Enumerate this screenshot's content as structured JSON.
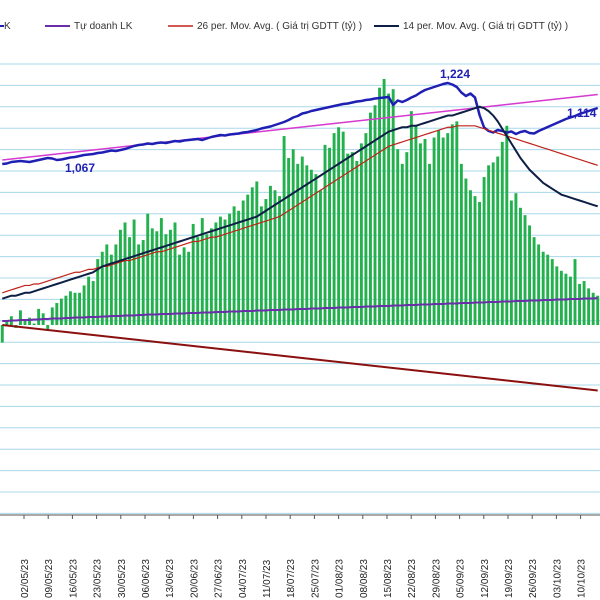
{
  "chart_data": {
    "type": "bar",
    "title": "",
    "xlabel": "",
    "ylabel": "",
    "legend": {
      "placement": "top",
      "entries": [
        {
          "key": "cut",
          "label": "K",
          "color": "#1f1fb4"
        },
        {
          "key": "prop",
          "label": "Tự doanh LK",
          "color": "#6a2ea8"
        },
        {
          "key": "ma26",
          "label": "26 per. Mov. Avg. ( Giá trị GDTT (tỷ) )",
          "color": "#c0221a"
        },
        {
          "key": "ma14",
          "label": "14 per. Mov. Avg. ( Giá trị GDTT (tỷ) )",
          "color": "#0d1f44"
        }
      ]
    },
    "x_ticks": [
      "02/05/23",
      "09/05/23",
      "16/05/23",
      "23/05/23",
      "30/05/23",
      "06/06/23",
      "13/06/23",
      "20/06/23",
      "27/06/23",
      "04/07/23",
      "11/07/23",
      "18/07/23",
      "25/07/23",
      "01/08/23",
      "08/08/23",
      "15/08/23",
      "22/08/23",
      "29/08/23",
      "05/09/23",
      "12/09/23",
      "19/09/23",
      "26/09/23",
      "03/10/23",
      "10/10/23"
    ],
    "annotations": [
      "1,224",
      "1,114",
      "1,067"
    ],
    "grid": true,
    "colors": {
      "bars": "#22b14c",
      "vnindex": "#1f1fb4",
      "trend": "#d63ad0",
      "proprietary": "#6a2ea8",
      "foreign": "#8b1010",
      "ma26": "#c0221a",
      "ma14": "#0d1f44",
      "grid": "#a8d8ea"
    },
    "series": [
      {
        "key": "bars",
        "values": [
          -12,
          3,
          6,
          -2,
          10,
          3,
          5,
          1,
          11,
          8,
          -4,
          12,
          15,
          18,
          20,
          23,
          22,
          22,
          27,
          33,
          30,
          45,
          50,
          55,
          48,
          55,
          65,
          70,
          60,
          72,
          55,
          58,
          76,
          66,
          64,
          73,
          62,
          65,
          70,
          48,
          53,
          50,
          69,
          60,
          73,
          62,
          66,
          70,
          74,
          72,
          76,
          81,
          78,
          85,
          89,
          94,
          98,
          81,
          86,
          95,
          92,
          88,
          129,
          114,
          120,
          110,
          115,
          109,
          106,
          103,
          92,
          123,
          121,
          131,
          135,
          132,
          117,
          118,
          112,
          124,
          131,
          145,
          150,
          162,
          168,
          158,
          161,
          120,
          110,
          118,
          146,
          136,
          124,
          127,
          110,
          128,
          133,
          128,
          131,
          137,
          139,
          110,
          100,
          92,
          88,
          84,
          101,
          109,
          111,
          115,
          125,
          136,
          85,
          90,
          80,
          75,
          68,
          60,
          55,
          50,
          48,
          45,
          40,
          37,
          35,
          33,
          45,
          28,
          30,
          25,
          22,
          20
        ]
      },
      {
        "key": "vnindex",
        "values": [
          1062,
          1063,
          1066,
          1067,
          1068,
          1067,
          1066,
          1068,
          1070,
          1072,
          1074,
          1073,
          1070,
          1071,
          1073,
          1075,
          1076,
          1078,
          1080,
          1081,
          1082,
          1084,
          1085,
          1087,
          1089,
          1088,
          1090,
          1092,
          1095,
          1098,
          1100,
          1101,
          1103,
          1102,
          1104,
          1105,
          1104,
          1106,
          1108,
          1107,
          1109,
          1110,
          1111,
          1112,
          1110,
          1113,
          1116,
          1118,
          1120,
          1119,
          1121,
          1122,
          1123,
          1125,
          1126,
          1128,
          1130,
          1133,
          1135,
          1137,
          1140,
          1143,
          1146,
          1150,
          1155,
          1158,
          1163,
          1165,
          1168,
          1170,
          1172,
          1174,
          1176,
          1178,
          1180,
          1182,
          1183,
          1185,
          1187,
          1188,
          1190,
          1191,
          1193,
          1194,
          1195,
          1196,
          1180,
          1189,
          1186,
          1190,
          1195,
          1199,
          1205,
          1210,
          1213,
          1216,
          1219,
          1222,
          1224,
          1221,
          1216,
          1205,
          1198,
          1203,
          1195,
          1160,
          1135,
          1128,
          1125,
          1130,
          1128,
          1125,
          1127,
          1122,
          1126,
          1128,
          1124,
          1123,
          1128,
          1132,
          1136,
          1140,
          1144,
          1148,
          1152,
          1155,
          1158,
          1162,
          1165,
          1168,
          1171,
          1174
        ]
      },
      {
        "key": "trend",
        "values": [
          1070,
          1071,
          1072,
          1073,
          1074,
          1075,
          1076,
          1077,
          1078,
          1079,
          1080,
          1081,
          1082,
          1083,
          1084,
          1085,
          1086,
          1087,
          1088,
          1089,
          1090,
          1091,
          1092,
          1093,
          1094,
          1095,
          1096,
          1097,
          1098,
          1099,
          1100,
          1101,
          1102,
          1103,
          1104,
          1105,
          1106,
          1107,
          1108,
          1109,
          1110,
          1111,
          1112,
          1113,
          1114,
          1115,
          1116,
          1117,
          1118,
          1119,
          1120,
          1121,
          1122,
          1123,
          1124,
          1125,
          1126,
          1127,
          1128,
          1129,
          1130,
          1131,
          1132,
          1133,
          1134,
          1135,
          1136,
          1137,
          1138,
          1139,
          1140,
          1141,
          1142,
          1143,
          1144,
          1145,
          1146,
          1147,
          1148,
          1149,
          1150,
          1151,
          1152,
          1153,
          1154,
          1155,
          1156,
          1157,
          1158,
          1159,
          1160,
          1161,
          1162,
          1163,
          1164,
          1165,
          1166,
          1167,
          1168,
          1169,
          1170,
          1171,
          1172,
          1173,
          1174,
          1175,
          1176,
          1177,
          1178,
          1179,
          1180,
          1181,
          1182,
          1183,
          1184,
          1185,
          1186,
          1187,
          1188,
          1189,
          1190,
          1191,
          1192,
          1193,
          1194,
          1195,
          1196,
          1197,
          1198,
          1199,
          1200,
          1201
        ]
      },
      {
        "key": "ma26",
        "values": [
          22,
          23,
          24,
          25,
          26,
          27,
          27,
          28,
          28,
          29,
          30,
          31,
          32,
          33,
          34,
          35,
          36,
          36,
          37,
          38,
          38,
          39,
          40,
          40,
          41,
          42,
          43,
          44,
          44,
          45,
          46,
          47,
          48,
          49,
          50,
          50,
          51,
          52,
          53,
          54,
          55,
          56,
          57,
          57,
          58,
          59,
          60,
          60,
          61,
          62,
          63,
          64,
          65,
          66,
          67,
          68,
          69,
          70,
          71,
          72,
          73,
          74,
          76,
          78,
          80,
          82,
          84,
          86,
          88,
          90,
          92,
          94,
          96,
          98,
          100,
          102,
          104,
          106,
          108,
          110,
          112,
          114,
          116,
          118,
          120,
          122,
          123,
          124,
          125,
          126,
          127,
          128,
          129,
          130,
          131,
          132,
          133,
          134,
          135,
          135,
          136,
          136,
          136,
          136,
          136,
          135,
          134,
          133,
          132,
          131,
          130,
          129,
          128,
          127,
          126,
          125,
          124,
          123,
          122,
          121,
          120,
          119,
          118,
          117,
          116,
          115,
          114,
          113,
          112,
          111,
          110,
          109
        ]
      },
      {
        "key": "ma14",
        "values": [
          18,
          19,
          20,
          20,
          21,
          22,
          22,
          23,
          24,
          25,
          26,
          27,
          28,
          29,
          30,
          31,
          32,
          33,
          34,
          35,
          36,
          38,
          40,
          41,
          42,
          43,
          44,
          45,
          46,
          47,
          48,
          49,
          50,
          51,
          52,
          53,
          54,
          55,
          56,
          57,
          58,
          59,
          60,
          61,
          62,
          63,
          64,
          65,
          66,
          67,
          68,
          69,
          70,
          71,
          72,
          73,
          74,
          76,
          78,
          80,
          82,
          84,
          86,
          88,
          90,
          92,
          94,
          96,
          98,
          100,
          102,
          104,
          106,
          108,
          110,
          112,
          114,
          116,
          118,
          120,
          122,
          124,
          126,
          128,
          130,
          132,
          133,
          134,
          135,
          135,
          136,
          136,
          137,
          138,
          139,
          140,
          141,
          142,
          143,
          143,
          144,
          145,
          146,
          147,
          148,
          149,
          148,
          146,
          143,
          139,
          134,
          129,
          124,
          119,
          114,
          110,
          106,
          103,
          100,
          97,
          95,
          93,
          91,
          89,
          88,
          87,
          86,
          85,
          84,
          83,
          82,
          81
        ]
      },
      {
        "key": "proprietary",
        "values": [
          -2,
          -2,
          -1,
          -1,
          0,
          0,
          0,
          1,
          1,
          2,
          2,
          3,
          3,
          3,
          4,
          4,
          5,
          5,
          5,
          6,
          6,
          6,
          7,
          7,
          8,
          8,
          8,
          9,
          9,
          9,
          10,
          10,
          11,
          11,
          11,
          12,
          12,
          12,
          13,
          13,
          13,
          14,
          14,
          14,
          15,
          15,
          15,
          16,
          16,
          16,
          17,
          17,
          17,
          18,
          18,
          18,
          19,
          19,
          19,
          20,
          20,
          20,
          21,
          21,
          21,
          22,
          22,
          22,
          23,
          23,
          23,
          24,
          24,
          24,
          25,
          25,
          25,
          26,
          26,
          26,
          27,
          27,
          27,
          28,
          28,
          28,
          29,
          29,
          29,
          30,
          30,
          30,
          31,
          31,
          31,
          32,
          32,
          32,
          33,
          33,
          33,
          34,
          34,
          34,
          35,
          35,
          35,
          36,
          36,
          36,
          37,
          37,
          37,
          38,
          38,
          38,
          39,
          39,
          39,
          40,
          40,
          40,
          41,
          41,
          41,
          42,
          42,
          42,
          43,
          43,
          43,
          44
        ]
      },
      {
        "key": "foreign",
        "values": [
          -10,
          -11,
          -12,
          -13,
          -14,
          -15,
          -16,
          -17,
          -18,
          -19,
          -20,
          -21,
          -22,
          -23,
          -24,
          -25,
          -26,
          -27,
          -28,
          -29,
          -30,
          -31,
          -32,
          -33,
          -34,
          -35,
          -36,
          -37,
          -38,
          -39,
          -40,
          -41,
          -42,
          -43,
          -44,
          -45,
          -46,
          -47,
          -48,
          -49,
          -50,
          -51,
          -52,
          -53,
          -54,
          -55,
          -56,
          -57,
          -58,
          -59,
          -60,
          -61,
          -62,
          -63,
          -64,
          -65,
          -66,
          -67,
          -68,
          -69,
          -70,
          -71,
          -72,
          -73,
          -74,
          -75,
          -76,
          -77,
          -78,
          -79,
          -80,
          -81,
          -82,
          -83,
          -84,
          -85,
          -86,
          -87,
          -88,
          -89,
          -90,
          -91,
          -92,
          -93,
          -94,
          -95,
          -96,
          -97,
          -98,
          -99,
          -100,
          -101,
          -102,
          -103,
          -104,
          -105,
          -106,
          -107,
          -108,
          -109,
          -110,
          -111,
          -112,
          -113,
          -114,
          -115,
          -116,
          -117,
          -118,
          -119,
          -120,
          -121,
          -122,
          -123,
          -124,
          -125,
          -126,
          -127,
          -128,
          -129,
          -130,
          -131,
          -132,
          -133,
          -134,
          -135,
          -136,
          -137,
          -138,
          -139,
          -140,
          -141
        ]
      }
    ]
  }
}
